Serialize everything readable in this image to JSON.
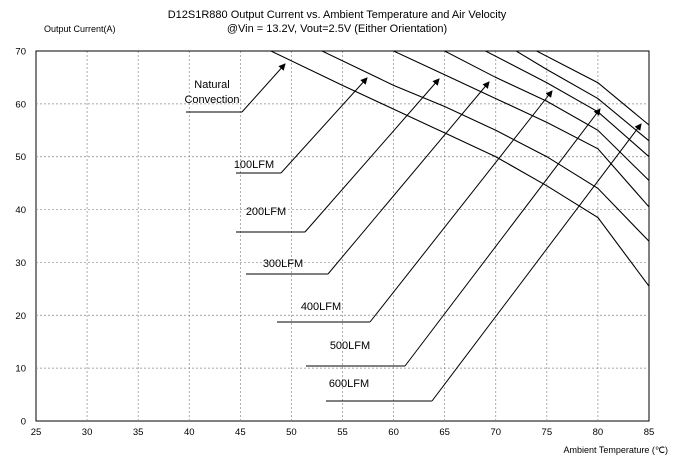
{
  "chart_data": {
    "type": "line",
    "title": "D12S1R880 Output Current vs. Ambient Temperature and Air Velocity",
    "subtitle": "@Vin = 13.2V, Vout=2.5V (Either Orientation)",
    "ylabel": "Output Current(A)",
    "xlabel": "Ambient Temperature (℃)",
    "xlim": [
      25,
      85
    ],
    "ylim": [
      0,
      70
    ],
    "xticks": [
      25,
      30,
      35,
      40,
      45,
      50,
      55,
      60,
      65,
      70,
      75,
      80,
      85
    ],
    "yticks": [
      0,
      10,
      20,
      30,
      40,
      50,
      60,
      70
    ],
    "grid": "dashed",
    "series": [
      {
        "name": "Natural Convection",
        "x": [
          25,
          48,
          55,
          60,
          65,
          70,
          75,
          80,
          85
        ],
        "y": [
          70,
          70,
          63.5,
          59,
          54.5,
          50,
          44.5,
          38.5,
          25.5
        ]
      },
      {
        "name": "100LFM",
        "x": [
          25,
          53,
          60,
          65,
          70,
          75,
          80,
          85
        ],
        "y": [
          70,
          70,
          63.5,
          59.5,
          55,
          50,
          44,
          34
        ]
      },
      {
        "name": "200LFM",
        "x": [
          25,
          60,
          65,
          70,
          75,
          80,
          85
        ],
        "y": [
          70,
          70,
          65.5,
          61,
          56.5,
          51.5,
          40.5
        ]
      },
      {
        "name": "300LFM",
        "x": [
          25,
          65,
          70,
          75,
          80,
          85
        ],
        "y": [
          70,
          70,
          65,
          60.5,
          55,
          45.5
        ]
      },
      {
        "name": "400LFM",
        "x": [
          25,
          69,
          75,
          80,
          85
        ],
        "y": [
          70,
          70,
          64,
          58.5,
          50
        ]
      },
      {
        "name": "500LFM",
        "x": [
          25,
          72,
          75,
          80,
          85
        ],
        "y": [
          70,
          70,
          66.5,
          61,
          53
        ]
      },
      {
        "name": "600LFM",
        "x": [
          25,
          74,
          80,
          85
        ],
        "y": [
          70,
          70,
          64,
          56
        ]
      }
    ]
  }
}
